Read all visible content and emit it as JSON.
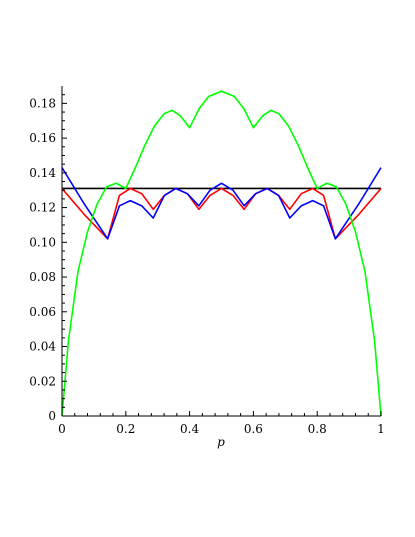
{
  "chart_data": {
    "type": "line",
    "title": "",
    "xlabel": "p",
    "ylabel": "",
    "xlim": [
      0,
      1
    ],
    "ylim": [
      0,
      0.19
    ],
    "x_ticks": [
      0,
      0.2,
      0.4,
      0.6,
      0.8,
      1
    ],
    "x_tick_labels": [
      "0",
      "0.2",
      "0.4",
      "0.6",
      "0.8",
      "1"
    ],
    "y_ticks": [
      0,
      0.02,
      0.04,
      0.06,
      0.08,
      0.1,
      0.12,
      0.14,
      0.16,
      0.18
    ],
    "y_tick_labels": [
      "0",
      "0.02",
      "0.04",
      "0.06",
      "0.08",
      "0.10",
      "0.12",
      "0.14",
      "0.16",
      "0.18"
    ],
    "grid": false,
    "legend": "none",
    "series": [
      {
        "color": "#000000",
        "x": [
          0,
          1
        ],
        "y": [
          0.131,
          0.131
        ]
      },
      {
        "color": "#ff0000",
        "x": [
          0,
          0.07,
          0.143,
          0.18,
          0.214,
          0.25,
          0.286,
          0.321,
          0.357,
          0.393,
          0.429,
          0.464,
          0.5,
          0.536,
          0.571,
          0.607,
          0.643,
          0.679,
          0.714,
          0.75,
          0.786,
          0.82,
          0.857,
          0.93,
          1
        ],
        "y": [
          0.131,
          0.116,
          0.102,
          0.127,
          0.131,
          0.128,
          0.119,
          0.127,
          0.131,
          0.128,
          0.119,
          0.127,
          0.131,
          0.127,
          0.119,
          0.128,
          0.131,
          0.127,
          0.119,
          0.128,
          0.131,
          0.127,
          0.102,
          0.116,
          0.131
        ]
      },
      {
        "color": "#0000ff",
        "x": [
          0,
          0.07,
          0.143,
          0.18,
          0.214,
          0.25,
          0.286,
          0.321,
          0.357,
          0.393,
          0.429,
          0.464,
          0.5,
          0.536,
          0.571,
          0.607,
          0.643,
          0.679,
          0.714,
          0.75,
          0.786,
          0.82,
          0.857,
          0.93,
          1
        ],
        "y": [
          0.143,
          0.122,
          0.102,
          0.121,
          0.124,
          0.121,
          0.114,
          0.127,
          0.131,
          0.128,
          0.121,
          0.13,
          0.134,
          0.13,
          0.121,
          0.128,
          0.131,
          0.127,
          0.114,
          0.121,
          0.124,
          0.121,
          0.102,
          0.122,
          0.143
        ]
      },
      {
        "color": "#00ff00",
        "x": [
          0,
          0.02,
          0.05,
          0.08,
          0.11,
          0.14,
          0.17,
          0.2,
          0.23,
          0.26,
          0.29,
          0.32,
          0.345,
          0.37,
          0.4,
          0.43,
          0.46,
          0.5,
          0.54,
          0.57,
          0.6,
          0.63,
          0.655,
          0.68,
          0.71,
          0.74,
          0.77,
          0.8,
          0.83,
          0.86,
          0.89,
          0.92,
          0.95,
          0.98,
          1
        ],
        "y": [
          0,
          0.043,
          0.083,
          0.106,
          0.122,
          0.132,
          0.134,
          0.131,
          0.143,
          0.156,
          0.167,
          0.174,
          0.176,
          0.173,
          0.166,
          0.177,
          0.184,
          0.187,
          0.184,
          0.177,
          0.166,
          0.173,
          0.176,
          0.174,
          0.167,
          0.156,
          0.143,
          0.131,
          0.134,
          0.132,
          0.122,
          0.106,
          0.083,
          0.043,
          0
        ]
      }
    ]
  }
}
